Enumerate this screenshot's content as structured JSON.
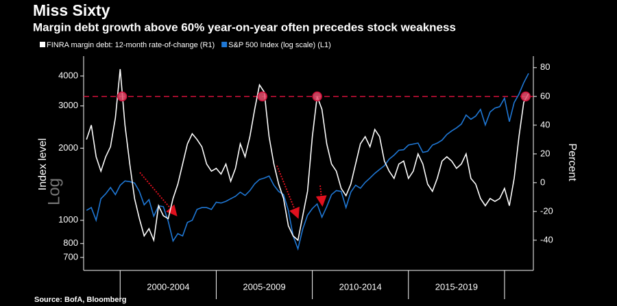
{
  "chart_data": {
    "type": "line",
    "title": "Miss Sixty",
    "subtitle": "Margin debt growth above 60% year-on-year often precedes stock weakness",
    "ylabel": "Index level",
    "ylabel_note": "Log",
    "y2label": "Percent",
    "source": "Source: BofA, Bloomberg",
    "log_scale_y": true,
    "xlim": [
      1998.1,
      2021.5
    ],
    "x_dividers": [
      2000,
      2005,
      2010,
      2015,
      2020
    ],
    "xticks": [
      {
        "value": 2002.5,
        "label": "2000-2004"
      },
      {
        "value": 2007.5,
        "label": "2005-2009"
      },
      {
        "value": 2012.5,
        "label": "2010-2014"
      },
      {
        "value": 2017.5,
        "label": "2015-2019"
      }
    ],
    "ylim": [
      618,
      4840
    ],
    "yticks": [
      700,
      800,
      1000,
      2000,
      3000,
      4000
    ],
    "y2lim": [
      -61,
      88
    ],
    "y2ticks": [
      -40,
      -20,
      0,
      20,
      40,
      60,
      80
    ],
    "threshold": {
      "axis": "y2",
      "value": 60,
      "color": "#d0103a"
    },
    "highlight_x": [
      2000.1,
      2007.4,
      2010.25,
      2021.1
    ],
    "x": [
      1998.25,
      1998.5,
      1998.75,
      1999,
      1999.25,
      1999.5,
      1999.75,
      2000,
      2000.25,
      2000.5,
      2000.75,
      2001,
      2001.25,
      2001.5,
      2001.75,
      2002,
      2002.25,
      2002.5,
      2002.75,
      2003,
      2003.25,
      2003.5,
      2003.75,
      2004,
      2004.25,
      2004.5,
      2004.75,
      2005,
      2005.25,
      2005.5,
      2005.75,
      2006,
      2006.25,
      2006.5,
      2006.75,
      2007,
      2007.25,
      2007.5,
      2007.75,
      2008,
      2008.25,
      2008.5,
      2008.75,
      2009,
      2009.25,
      2009.5,
      2009.75,
      2010,
      2010.25,
      2010.5,
      2010.75,
      2011,
      2011.25,
      2011.5,
      2011.75,
      2012,
      2012.25,
      2012.5,
      2012.75,
      2013,
      2013.25,
      2013.5,
      2013.75,
      2014,
      2014.25,
      2014.5,
      2014.75,
      2015,
      2015.25,
      2015.5,
      2015.75,
      2016,
      2016.25,
      2016.5,
      2016.75,
      2017,
      2017.25,
      2017.5,
      2017.75,
      2018,
      2018.25,
      2018.5,
      2018.75,
      2019,
      2019.25,
      2019.5,
      2019.75,
      2020,
      2020.25,
      2020.5,
      2020.75,
      2021,
      2021.25
    ],
    "series": [
      {
        "name": "FINRA margin debt: 12-month rate-of-change (R1)",
        "color": "#ffffff",
        "axis": "y2",
        "values": [
          30,
          40,
          18,
          8,
          18,
          25,
          45,
          79,
          40,
          13,
          -11,
          -25,
          -37,
          -32,
          -40,
          -16,
          -23,
          -25,
          -11,
          -1,
          13,
          27,
          34,
          30,
          25,
          13,
          8,
          10,
          6,
          13,
          1,
          10,
          27,
          18,
          32,
          51,
          68,
          63,
          32,
          13,
          -1,
          -11,
          -30,
          -37,
          -40,
          -23,
          -6,
          32,
          60,
          51,
          27,
          13,
          8,
          -4,
          -9,
          -1,
          13,
          27,
          32,
          25,
          37,
          32,
          15,
          8,
          3,
          13,
          15,
          3,
          8,
          20,
          13,
          -1,
          -6,
          3,
          15,
          18,
          15,
          10,
          13,
          20,
          3,
          -1,
          -11,
          -16,
          -11,
          -13,
          -11,
          -4,
          -16,
          3,
          32,
          56,
          62
        ]
      },
      {
        "name": "S&P 500 Index (log scale) (L1)",
        "color": "#1f78d6",
        "values": [
          1100,
          1130,
          1000,
          1230,
          1290,
          1370,
          1280,
          1400,
          1460,
          1450,
          1430,
          1320,
          1160,
          1220,
          1040,
          1150,
          1140,
          990,
          820,
          880,
          860,
          980,
          1000,
          1110,
          1130,
          1130,
          1110,
          1190,
          1180,
          1200,
          1230,
          1260,
          1310,
          1270,
          1330,
          1420,
          1480,
          1500,
          1530,
          1400,
          1320,
          1280,
          1100,
          860,
          760,
          920,
          1050,
          1120,
          1170,
          1030,
          1140,
          1280,
          1330,
          1320,
          1130,
          1310,
          1400,
          1360,
          1440,
          1500,
          1570,
          1630,
          1690,
          1800,
          1870,
          1960,
          1970,
          2060,
          2080,
          2100,
          1920,
          1940,
          2060,
          2100,
          2160,
          2280,
          2360,
          2430,
          2520,
          2750,
          2640,
          2720,
          2900,
          2500,
          2830,
          2940,
          2980,
          3230,
          2580,
          3100,
          3360,
          3750,
          4100
        ]
      }
    ]
  }
}
